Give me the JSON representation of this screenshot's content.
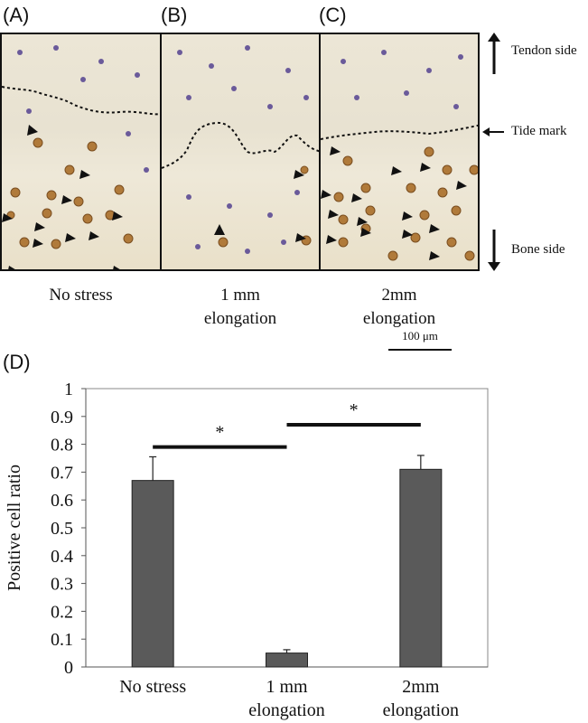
{
  "panels": [
    {
      "label": "(A)",
      "caption_lines": [
        "No stress"
      ]
    },
    {
      "label": "(B)",
      "caption_lines": [
        "1 mm",
        "elongation"
      ]
    },
    {
      "label": "(C)",
      "caption_lines": [
        "2mm",
        "elongation"
      ]
    }
  ],
  "annotations": {
    "tendon_side": "Tendon side",
    "tide_mark": "Tide mark",
    "bone_side": "Bone side",
    "scale_bar": "100 μm"
  },
  "chart_panel_label": "(D)",
  "colors": {
    "bar": "#5a5a5a",
    "stained_cell": "#b07a3a",
    "nucleus": "#6a5a9a"
  },
  "chart_data": {
    "type": "bar",
    "categories": [
      "No stress",
      "1 mm elongation",
      "2mm elongation"
    ],
    "category_lines": [
      [
        "No stress"
      ],
      [
        "1 mm",
        "elongation"
      ],
      [
        "2mm",
        "elongation"
      ]
    ],
    "values": [
      0.67,
      0.05,
      0.71
    ],
    "errors": [
      0.085,
      0.012,
      0.05
    ],
    "ylabel": "Positive cell ratio",
    "ylim": [
      0,
      1
    ],
    "yticks": [
      "0",
      "0.1",
      "0.2",
      "0.3",
      "0.4",
      "0.5",
      "0.6",
      "0.7",
      "0.8",
      "0.9",
      "1"
    ],
    "grid": false,
    "significance": [
      {
        "from": 0,
        "to": 1,
        "label": "*",
        "y": 0.79
      },
      {
        "from": 1,
        "to": 2,
        "label": "*",
        "y": 0.87
      }
    ]
  }
}
